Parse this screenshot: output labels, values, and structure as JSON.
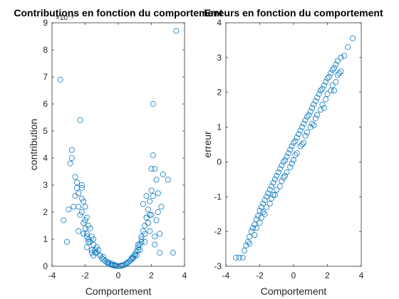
{
  "chart_data": [
    {
      "type": "scatter",
      "title": "Contributions en fonction du comportement",
      "xlabel": "Comportement",
      "ylabel": "contribution",
      "exponent_label": "×10⁻³",
      "xlim": [
        -4,
        4
      ],
      "ylim": [
        0,
        9
      ],
      "xticks": [
        "-4",
        "-2",
        "0",
        "2",
        "4"
      ],
      "yticks": [
        "0",
        "1",
        "2",
        "3",
        "4",
        "5",
        "6",
        "7",
        "8",
        "9"
      ],
      "color": "#0072BD",
      "grid": false,
      "series": [
        {
          "x": [
            -3.5,
            -3.3,
            -3.1,
            -3.0,
            -2.9,
            -2.8,
            -2.7,
            -2.6,
            -2.5,
            -2.4,
            -2.3,
            -2.2,
            -2.1,
            -2.0,
            -1.9,
            -1.8,
            -1.7,
            -1.6,
            -1.5,
            -1.4,
            -1.3,
            -2.8,
            -2.6,
            -2.4,
            -2.2,
            -2.0,
            -1.8,
            -2.3,
            -2.1,
            -1.9,
            -1.7,
            -1.5,
            -2.5,
            -2.2,
            -1.9,
            -1.6,
            -1.3,
            -1.1,
            -1.0,
            -0.9,
            -0.8,
            -0.7,
            -0.6,
            -0.5,
            -0.4,
            -0.3,
            -0.2,
            -0.1,
            0.0,
            0.1,
            0.2,
            0.3,
            0.4,
            0.5,
            0.6,
            0.7,
            0.8,
            0.9,
            1.0,
            1.1,
            1.2,
            1.3,
            1.4,
            1.5,
            1.6,
            1.7,
            1.8,
            1.9,
            2.0,
            2.1,
            2.2,
            2.3,
            2.4,
            2.5,
            2.7,
            3.0,
            3.3,
            3.5,
            2.1,
            2.2,
            1.9,
            1.8,
            1.6,
            1.4,
            1.2,
            1.0,
            0.8,
            2.4,
            2.6,
            2.0,
            1.7,
            1.5,
            2.3,
            2.5,
            2.2,
            -2.4,
            -2.0,
            -1.4,
            -1.2,
            -0.9,
            -0.6,
            -0.4,
            -0.2,
            0.2,
            0.5,
            0.7,
            1.1,
            1.3,
            1.6,
            1.9,
            -2.2,
            -1.8,
            -1.5,
            -1.1,
            0.9,
            1.4,
            1.8,
            2.0,
            -2.1,
            -1.6,
            1.2,
            1.7,
            -1.9,
            2.1
          ],
          "y": [
            6.9,
            1.7,
            0.9,
            2.1,
            3.8,
            4.3,
            2.2,
            2.6,
            2.9,
            1.3,
            5.4,
            3.0,
            1.6,
            2.2,
            1.1,
            0.9,
            1.4,
            0.5,
            0.8,
            0.6,
            0.7,
            4.0,
            3.3,
            2.7,
            2.0,
            1.4,
            1.0,
            1.9,
            1.2,
            0.7,
            0.9,
            0.4,
            3.1,
            2.5,
            1.8,
            0.6,
            0.5,
            0.4,
            0.3,
            0.25,
            0.2,
            0.15,
            0.1,
            0.08,
            0.05,
            0.03,
            0.02,
            0.01,
            0.0,
            0.01,
            0.02,
            0.04,
            0.06,
            0.1,
            0.15,
            0.2,
            0.25,
            0.35,
            0.45,
            0.55,
            0.7,
            0.8,
            1.0,
            1.3,
            1.5,
            1.8,
            2.1,
            2.4,
            2.8,
            6.0,
            3.6,
            3.2,
            2.0,
            1.2,
            3.4,
            3.2,
            0.5,
            8.7,
            4.1,
            0.8,
            1.9,
            1.6,
            1.2,
            0.9,
            0.6,
            0.4,
            0.3,
            2.7,
            2.2,
            3.6,
            2.6,
            2.3,
            1.7,
            0.5,
            1.1,
            2.2,
            1.7,
            0.5,
            0.6,
            0.35,
            0.15,
            0.1,
            0.05,
            0.03,
            0.12,
            0.2,
            0.4,
            0.6,
            0.9,
            1.3,
            2.9,
            1.5,
            1.0,
            0.4,
            0.3,
            1.1,
            1.6,
            1.9,
            2.4,
            1.1,
            0.8,
            1.8,
            1.2,
            2.6
          ]
        }
      ]
    },
    {
      "type": "scatter",
      "title": "Erreurs en fonction du comportement",
      "xlabel": "Comportement",
      "ylabel": "erreur",
      "xlim": [
        -4,
        4
      ],
      "ylim": [
        -3,
        4
      ],
      "xticks": [
        "-4",
        "-2",
        "0",
        "2",
        "4"
      ],
      "yticks": [
        "-3",
        "-2",
        "-1",
        "0",
        "1",
        "2",
        "3",
        "4"
      ],
      "color": "#0072BD",
      "grid": false,
      "series": [
        {
          "x": [
            -3.4,
            -3.2,
            -3.0,
            -2.9,
            -2.8,
            -2.7,
            -2.6,
            -2.5,
            -2.4,
            -2.3,
            -2.2,
            -2.1,
            -2.0,
            -1.9,
            -1.8,
            -1.7,
            -1.6,
            -1.5,
            -1.4,
            -1.3,
            -1.2,
            -1.1,
            -1.0,
            -0.9,
            -0.8,
            -0.7,
            -0.6,
            -0.5,
            -0.4,
            -0.3,
            -0.2,
            -0.1,
            0.0,
            0.1,
            0.2,
            0.3,
            0.4,
            0.5,
            0.6,
            0.7,
            0.8,
            0.9,
            1.0,
            1.1,
            1.2,
            1.3,
            1.4,
            1.5,
            1.6,
            1.7,
            1.8,
            1.9,
            2.0,
            2.1,
            2.2,
            2.3,
            2.4,
            2.5,
            2.6,
            2.7,
            2.8,
            3.0,
            3.2,
            3.5,
            -2.6,
            -2.3,
            -2.0,
            -1.7,
            -1.4,
            -1.1,
            -0.8,
            -0.5,
            -0.2,
            0.1,
            0.4,
            0.7,
            1.0,
            1.3,
            1.6,
            1.9,
            2.2,
            2.5,
            2.8,
            -2.2,
            -1.9,
            -1.6,
            -1.3,
            -1.0,
            -0.7,
            -0.4,
            -0.1,
            0.2,
            0.5,
            0.8,
            1.1,
            1.4,
            1.7,
            2.0,
            2.3,
            2.6,
            -1.8,
            -1.2,
            -0.6,
            0.0,
            0.6,
            1.2,
            1.8,
            2.4
          ],
          "y": [
            -2.75,
            -2.75,
            -2.75,
            -2.55,
            -2.4,
            -2.3,
            -2.15,
            -2.0,
            -1.9,
            -1.8,
            -1.65,
            -1.55,
            -1.4,
            -1.3,
            -1.2,
            -1.1,
            -1.0,
            -0.9,
            -0.8,
            -0.7,
            -0.6,
            -0.5,
            -0.4,
            -0.3,
            -0.2,
            -0.1,
            0.0,
            0.05,
            0.15,
            0.25,
            0.35,
            0.45,
            0.55,
            0.6,
            0.7,
            0.8,
            0.9,
            1.0,
            1.1,
            1.2,
            1.3,
            1.35,
            1.45,
            1.55,
            1.65,
            1.75,
            1.85,
            1.95,
            2.05,
            2.1,
            2.2,
            2.3,
            2.4,
            2.45,
            2.55,
            2.65,
            2.7,
            2.8,
            2.9,
            2.55,
            3.0,
            3.05,
            3.3,
            3.55,
            -2.35,
            -2.1,
            -1.75,
            -1.5,
            -1.2,
            -0.95,
            -0.7,
            -0.4,
            -0.15,
            0.2,
            0.45,
            0.75,
            1.0,
            1.25,
            1.5,
            1.8,
            2.05,
            2.3,
            2.6,
            -1.9,
            -1.6,
            -1.3,
            -1.05,
            -0.8,
            -0.55,
            -0.3,
            -0.05,
            0.25,
            0.5,
            0.85,
            1.1,
            1.35,
            1.65,
            1.95,
            2.2,
            2.5,
            -1.45,
            -0.95,
            -0.45,
            0.05,
            0.55,
            1.05,
            1.55,
            2.05
          ]
        }
      ]
    }
  ]
}
